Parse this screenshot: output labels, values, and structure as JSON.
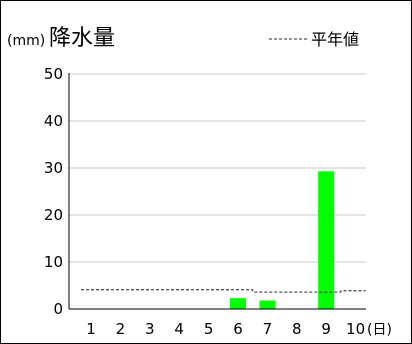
{
  "chart_data": {
    "type": "bar",
    "unit": "(mm)",
    "title": "降水量",
    "legend": [
      {
        "label": "平年値",
        "style": "dashed",
        "color": "#555555"
      }
    ],
    "x_unit": "(日)",
    "categories": [
      "1",
      "2",
      "3",
      "4",
      "5",
      "6",
      "7",
      "8",
      "9",
      "10"
    ],
    "values": [
      0,
      0,
      0,
      0,
      0,
      2.3,
      1.8,
      0,
      29.3,
      0
    ],
    "normal": [
      4.1,
      4.1,
      4.1,
      4.1,
      4.1,
      4.1,
      3.6,
      3.6,
      3.6,
      3.9
    ],
    "ylim": [
      0,
      50
    ],
    "yticks": [
      0,
      10,
      20,
      30,
      40,
      50
    ],
    "grid": true,
    "bar_color": "#00ff00",
    "grid_color": "#c8c8c8",
    "normal_color": "#555555"
  }
}
